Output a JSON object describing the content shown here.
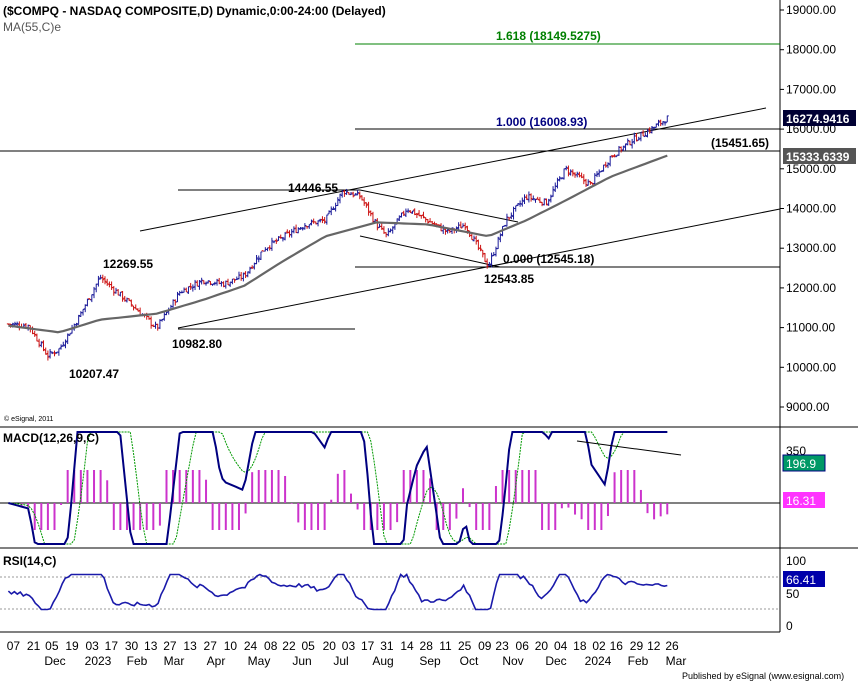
{
  "header": {
    "title": "($COMPQ - NASDAQ COMPOSITE,D) Dynamic,0:00-24:00 (Delayed)",
    "ma_label": "MA(55,C)e"
  },
  "watermark": "© eSignal, 2011",
  "footer": "Published by eSignal (www.esignal.com)",
  "colors": {
    "up_bar": "#1a1a99",
    "down_bar": "#cc1111",
    "ma": "#666666",
    "fib_green": "#008000",
    "fib_blue": "#000080",
    "macd_line": "#000080",
    "macd_signal": "#009900",
    "histogram": "#cc33cc",
    "rsi_line": "#1a1aaa",
    "price_box": "#000033",
    "ma_box": "#555555",
    "macd_box_fill": "#009966",
    "hist_box_fill": "#ff33ff",
    "rsi_box": "#0000aa"
  },
  "price_axis": {
    "ticks": [
      "19000.00",
      "18000.00",
      "17000.00",
      "16000.00",
      "15000.00",
      "14000.00",
      "13000.00",
      "12000.00",
      "11000.00",
      "10000.00",
      "9000.00"
    ],
    "current_price": "16274.9416",
    "ma_value": "15333.6339",
    "level_15451": "(15451.65)"
  },
  "fib": {
    "level_1618": "1.618 (18149.5275)",
    "level_1000": "1.000 (16008.93)",
    "level_0000": "0.000 (12545.18)"
  },
  "annotations": {
    "a1": "12269.55",
    "a2": "10982.80",
    "a3": "10207.47",
    "a4": "14446.55",
    "a5": "12543.85"
  },
  "macd": {
    "label": "MACD(12,26,9,C)",
    "ticks": [
      "350"
    ],
    "value_box": "196.9",
    "hist_box": "16.31"
  },
  "rsi": {
    "label": "RSI(14,C)",
    "ticks": [
      "100",
      "50",
      "0"
    ],
    "value_box": "66.41"
  },
  "x_axis": {
    "days": [
      "07",
      "21",
      "05",
      "19",
      "03",
      "17",
      "30",
      "13",
      "27",
      "13",
      "27",
      "10",
      "24",
      "08",
      "22",
      "05",
      "20",
      "03",
      "17",
      "31",
      "14",
      "28",
      "11",
      "25",
      "09",
      "23",
      "06",
      "20",
      "04",
      "18",
      "02",
      "16",
      "29",
      "12",
      "26"
    ],
    "months": [
      "Dec",
      "2023",
      "Feb",
      "Mar",
      "Apr",
      "May",
      "Jun",
      "Jul",
      "Aug",
      "Sep",
      "Oct",
      "Nov",
      "Dec",
      "2024",
      "Feb",
      "Mar"
    ]
  },
  "chart_data": {
    "type": "line",
    "title": "$COMPQ - NASDAQ COMPOSITE, Daily",
    "series": [
      {
        "name": "close",
        "x": [
          "2022-12-01",
          "2022-12-15",
          "2022-12-28",
          "2023-01-05",
          "2023-01-19",
          "2023-02-02",
          "2023-02-15",
          "2023-03-01",
          "2023-03-13",
          "2023-03-29",
          "2023-04-14",
          "2023-04-28",
          "2023-05-12",
          "2023-05-26",
          "2023-06-09",
          "2023-06-23",
          "2023-07-07",
          "2023-07-19",
          "2023-07-31",
          "2023-08-11",
          "2023-08-18",
          "2023-09-01",
          "2023-09-15",
          "2023-09-29",
          "2023-10-11",
          "2023-10-27",
          "2023-11-08",
          "2023-11-22",
          "2023-12-06",
          "2023-12-19",
          "2024-01-05",
          "2024-01-19",
          "2024-02-02",
          "2024-02-16",
          "2024-02-27"
        ],
        "y": [
          11090,
          11050,
          10290,
          10458,
          11300,
          12270,
          11850,
          11400,
          10983,
          11900,
          12200,
          12100,
          12300,
          13000,
          13300,
          13600,
          13700,
          14446,
          14300,
          13600,
          13300,
          14000,
          13700,
          13400,
          13600,
          12543.85,
          13700,
          14300,
          14150,
          15000,
          14600,
          15300,
          15700,
          16000,
          16274.94
        ]
      },
      {
        "name": "MA(55,C)e",
        "x": [
          "2022-12-01",
          "2023-01-05",
          "2023-02-02",
          "2023-03-13",
          "2023-04-14",
          "2023-05-12",
          "2023-06-09",
          "2023-07-07",
          "2023-08-11",
          "2023-09-15",
          "2023-10-27",
          "2023-11-22",
          "2023-12-19",
          "2024-01-19",
          "2024-02-27"
        ],
        "y": [
          11050,
          10880,
          11200,
          11350,
          11700,
          12050,
          12700,
          13300,
          13650,
          13600,
          13300,
          13700,
          14200,
          14800,
          15333.63
        ]
      }
    ],
    "ylim": [
      8600,
      19200
    ],
    "price_ticks": [
      19000,
      18000,
      17000,
      16000,
      15000,
      14000,
      13000,
      12000,
      11000,
      10000,
      9000
    ],
    "fib_levels": [
      {
        "ratio": 1.618,
        "value": 18149.5275
      },
      {
        "ratio": 1.0,
        "value": 16008.93
      },
      {
        "ratio": 0.0,
        "value": 12545.18
      }
    ],
    "horizontal_levels": [
      15451.65
    ],
    "swing_points": [
      {
        "x": "2023-02-02",
        "value": 12269.55
      },
      {
        "x": "2023-03-13",
        "value": 10982.8
      },
      {
        "x": "2022-12-28",
        "value": 10207.47
      },
      {
        "x": "2023-07-19",
        "value": 14446.55
      },
      {
        "x": "2023-10-27",
        "value": 12543.85
      }
    ],
    "macd": {
      "params": "12,26,9,C",
      "value": 196.9,
      "histogram": 16.31
    },
    "rsi": {
      "params": "14,C",
      "value": 66.41,
      "ylim": [
        0,
        100
      ]
    }
  }
}
